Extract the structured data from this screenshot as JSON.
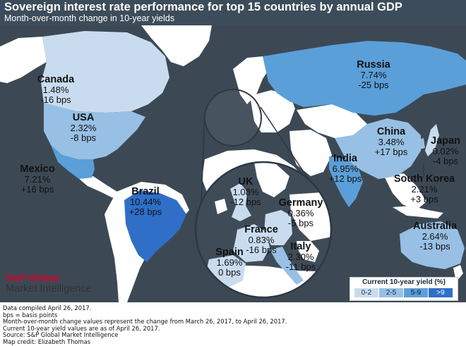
{
  "header": {
    "title": "Sovereign interest rate performance for top 15 countries by annual GDP",
    "subtitle": "Month-over-month change in 10-year yields"
  },
  "countries": {
    "canada": {
      "name": "Canada",
      "yield": "1.48%",
      "change": "-16 bps"
    },
    "usa": {
      "name": "USA",
      "yield": "2.32%",
      "change": "-8 bps"
    },
    "mexico": {
      "name": "Mexico",
      "yield": "7.21%",
      "change": "+16 bps"
    },
    "brazil": {
      "name": "Brazil",
      "yield": "10.44%",
      "change": "+28 bps"
    },
    "russia": {
      "name": "Russia",
      "yield": "7.74%",
      "change": "-25 bps"
    },
    "china": {
      "name": "China",
      "yield": "3.48%",
      "change": "+17 bps"
    },
    "japan": {
      "name": "Japan",
      "yield": "0.02%",
      "change": "-4 bps"
    },
    "india": {
      "name": "India",
      "yield": "6.95%",
      "change": "+12 bps"
    },
    "south_korea": {
      "name": "South Korea",
      "yield": "2.21%",
      "change": "+3 bps"
    },
    "australia": {
      "name": "Australia",
      "yield": "2.64%",
      "change": "-13 bps"
    },
    "uk": {
      "name": "UK",
      "yield": "1.08%",
      "change": "-12 bps"
    },
    "germany": {
      "name": "Germany",
      "yield": "0.36%",
      "change": "-5 bps"
    },
    "france": {
      "name": "France",
      "yield": "0.83%",
      "change": "-16 bps"
    },
    "italy": {
      "name": "Italy",
      "yield": "2.30%",
      "change": "-11 bps"
    },
    "spain": {
      "name": "Spain",
      "yield": "1.69%",
      "change": "0 bps"
    }
  },
  "legend": {
    "title": "Current 10-year yield (%)",
    "bins": [
      {
        "label": "0-2",
        "color": "#c9dcef"
      },
      {
        "label": "2-5",
        "color": "#98c0e4"
      },
      {
        "label": "5-9",
        "color": "#5b9fd8"
      },
      {
        "label": ">9",
        "color": "#2f6fc7"
      }
    ]
  },
  "colors": {
    "background": "#3c4955",
    "land_nodata": "#ffffff",
    "brand_red": "#d6002a"
  },
  "brand": {
    "line1": "S&P Global",
    "line2": "Market Intelligence"
  },
  "footer": {
    "lines": [
      "Data compiled April 26, 2017.",
      "bps = basis points",
      "Month-over-month change values represent the change from March 26, 2017, to April 26, 2017.",
      "Current 10-year yield values are as of April 26, 2017.",
      "Source: S&P Global Market Intelligence",
      "Map credit: Elizabeth Thomas"
    ]
  }
}
